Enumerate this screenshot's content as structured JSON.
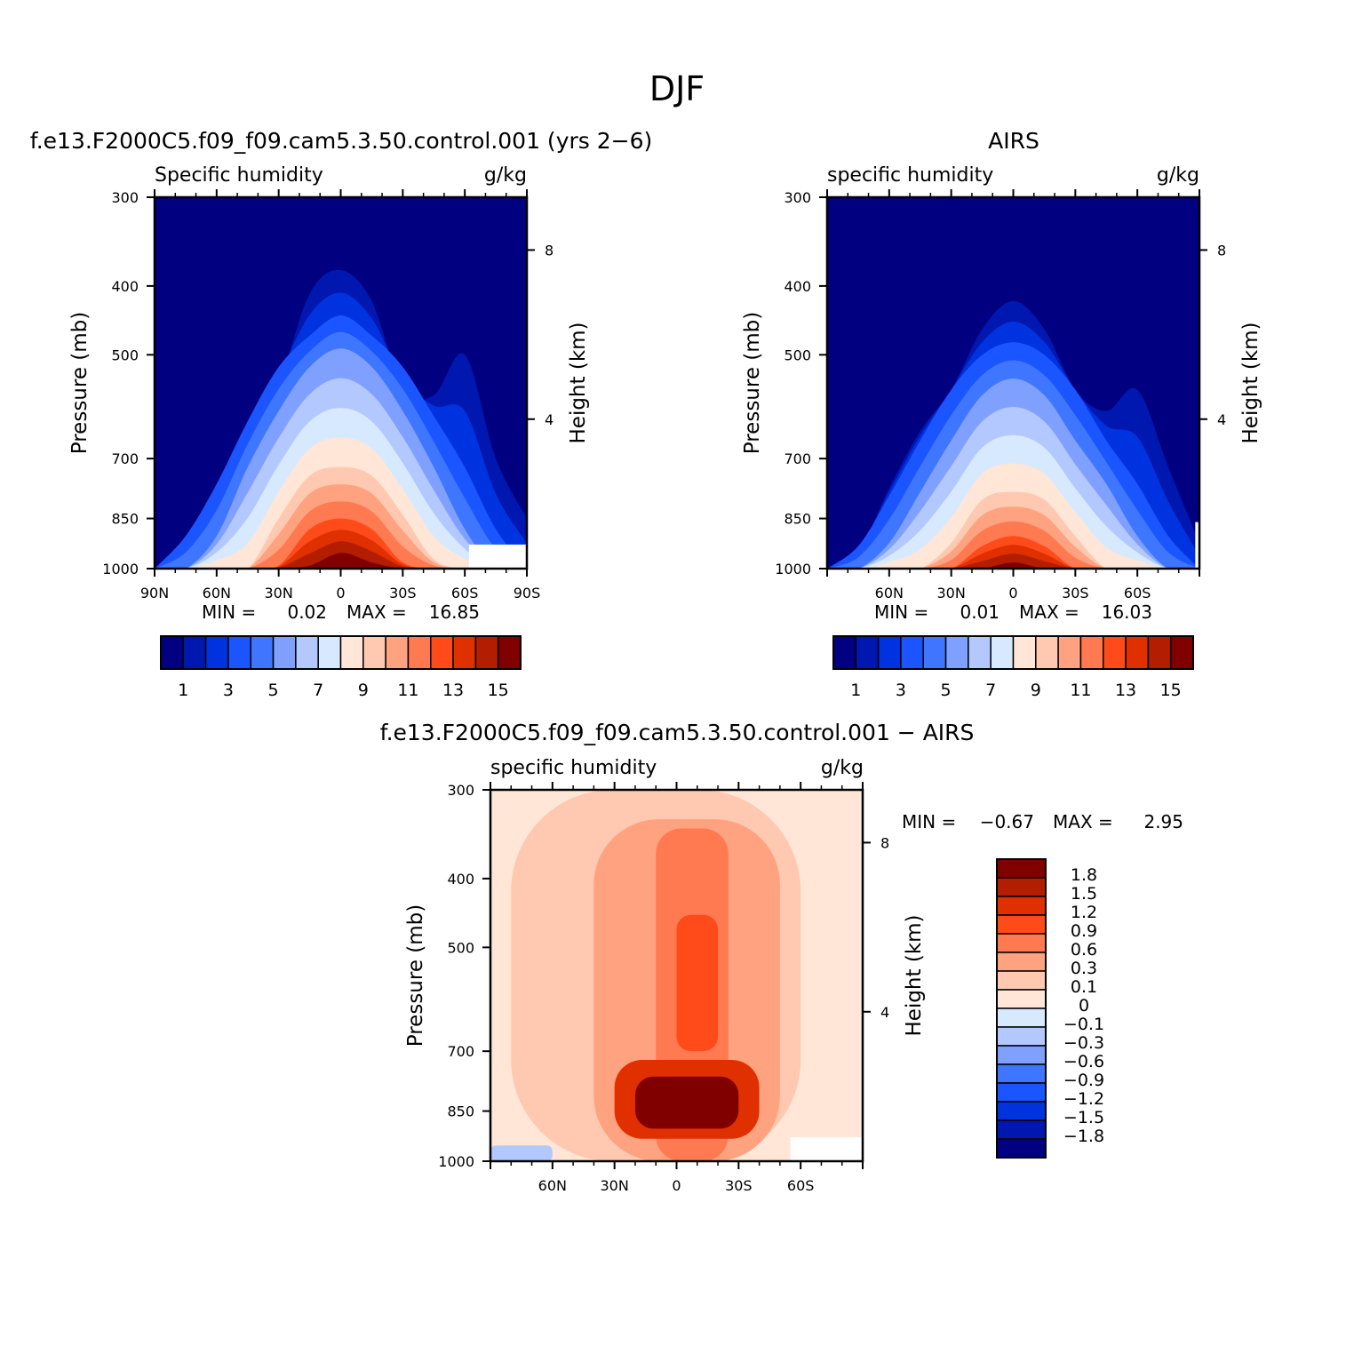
{
  "title": "DJF",
  "colors": {
    "absolute_scale": [
      "#000080",
      "#0017b0",
      "#0033e0",
      "#1a55ff",
      "#3f76ff",
      "#7fa0ff",
      "#b3c8ff",
      "#d7e9ff",
      "#ffe6d6",
      "#ffc8b0",
      "#ffa27f",
      "#ff7a50",
      "#ff4a1a",
      "#e03000",
      "#b41e00",
      "#800000"
    ],
    "difference_scale": [
      "#000080",
      "#0017b0",
      "#0033e0",
      "#1a55ff",
      "#3f76ff",
      "#7fa0ff",
      "#b3c8ff",
      "#d7e9ff",
      "#ffe6d6",
      "#ffc8b0",
      "#ffa27f",
      "#ff7a50",
      "#ff4a1a",
      "#e03000",
      "#b41e00",
      "#800000"
    ]
  },
  "panels": {
    "model": {
      "heading": "f.e13.F2000C5.f09_f09.cam5.3.50.control.001 (yrs 2−6)",
      "left_string": "Specific humidity",
      "right_string": "g/kg",
      "ylabel": "Pressure (mb)",
      "right_axis_label": "Height (km)",
      "y_ticks": [
        "300",
        "400",
        "500",
        "700",
        "850",
        "1000"
      ],
      "height_ticks": [
        "8",
        "4"
      ],
      "x_ticks": [
        "90N",
        "60N",
        "30N",
        "0",
        "30S",
        "60S",
        "90S"
      ],
      "min_label": "MIN =",
      "min_value": "0.02",
      "max_label": "MAX =",
      "max_value": "16.85",
      "colorbar_labels": [
        "1",
        "3",
        "5",
        "7",
        "9",
        "11",
        "13",
        "15"
      ]
    },
    "airs": {
      "heading": "AIRS",
      "left_string": "specific humidity",
      "right_string": "g/kg",
      "ylabel": "Pressure (mb)",
      "right_axis_label": "Height (km)",
      "y_ticks": [
        "300",
        "400",
        "500",
        "700",
        "850",
        "1000"
      ],
      "height_ticks": [
        "8",
        "4"
      ],
      "x_ticks": [
        "60N",
        "30N",
        "0",
        "30S",
        "60S"
      ],
      "min_label": "MIN =",
      "min_value": "0.01",
      "max_label": "MAX =",
      "max_value": "16.03",
      "colorbar_labels": [
        "1",
        "3",
        "5",
        "7",
        "9",
        "11",
        "13",
        "15"
      ]
    },
    "diff": {
      "heading": "f.e13.F2000C5.f09_f09.cam5.3.50.control.001 − AIRS",
      "left_string": "specific humidity",
      "right_string": "g/kg",
      "ylabel": "Pressure (mb)",
      "right_axis_label": "Height (km)",
      "y_ticks": [
        "300",
        "400",
        "500",
        "700",
        "850",
        "1000"
      ],
      "height_ticks": [
        "8",
        "4"
      ],
      "x_ticks": [
        "60N",
        "30N",
        "0",
        "30S",
        "60S"
      ],
      "min_label": "MIN =",
      "min_value": "−0.67",
      "max_label": "MAX =",
      "max_value": "2.95",
      "colorbar_labels": [
        "1.8",
        "1.5",
        "1.2",
        "0.9",
        "0.6",
        "0.3",
        "0.1",
        "0",
        "−0.1",
        "−0.3",
        "−0.6",
        "−0.9",
        "−1.2",
        "−1.5",
        "−1.8"
      ]
    }
  },
  "chart_data": [
    {
      "type": "heatmap",
      "title": "f.e13.F2000C5.f09_f09.cam5.3.50.control.001 (yrs 2−6)",
      "variable": "Specific humidity",
      "units": "g/kg",
      "x": [
        "90N",
        "60N",
        "30N",
        "0",
        "30S",
        "60S",
        "90S"
      ],
      "xlim": [
        90,
        -90
      ],
      "y": [
        300,
        400,
        500,
        700,
        850,
        1000
      ],
      "ylim": [
        1000,
        300
      ],
      "ylabel": "Pressure (mb)",
      "y2label": "Height (km)",
      "levels": [
        1,
        2,
        3,
        4,
        5,
        6,
        7,
        8,
        9,
        10,
        11,
        12,
        13,
        14,
        15
      ],
      "min": 0.02,
      "max": 16.85,
      "contour_tops_hPa": {
        "latitudes": [
          -90,
          -75,
          -60,
          -45,
          -30,
          -15,
          0,
          15,
          30,
          45,
          60,
          75,
          90
        ],
        "level_1": [
          850,
          700,
          500,
          570,
          560,
          420,
          380,
          410,
          550,
          650,
          760,
          950,
          1000
        ],
        "level_3": [
          1000,
          880,
          720,
          610,
          520,
          470,
          440,
          470,
          520,
          620,
          760,
          900,
          1000
        ],
        "level_5": [
          1000,
          1000,
          880,
          720,
          600,
          520,
          490,
          520,
          600,
          720,
          900,
          1000,
          1000
        ],
        "level_9": [
          1000,
          1000,
          1000,
          970,
          840,
          740,
          720,
          740,
          850,
          1000,
          1000,
          1000,
          1000
        ],
        "level_13": [
          1000,
          1000,
          1000,
          1000,
          980,
          880,
          850,
          880,
          990,
          1000,
          1000,
          1000,
          1000
        ],
        "level_15": [
          1000,
          1000,
          1000,
          1000,
          1000,
          980,
          950,
          990,
          1000,
          1000,
          1000,
          1000,
          1000
        ]
      }
    },
    {
      "type": "heatmap",
      "title": "AIRS",
      "variable": "specific humidity",
      "units": "g/kg",
      "x": [
        "60N",
        "30N",
        "0",
        "30S",
        "60S"
      ],
      "xlim": [
        90,
        -90
      ],
      "y": [
        300,
        400,
        500,
        700,
        850,
        1000
      ],
      "ylim": [
        1000,
        300
      ],
      "ylabel": "Pressure (mb)",
      "y2label": "Height (km)",
      "levels": [
        1,
        2,
        3,
        4,
        5,
        6,
        7,
        8,
        9,
        10,
        11,
        12,
        13,
        14,
        15
      ],
      "min": 0.01,
      "max": 16.03,
      "contour_tops_hPa": {
        "latitudes": [
          -90,
          -75,
          -60,
          -45,
          -30,
          -15,
          0,
          15,
          30,
          45,
          60,
          75,
          90
        ],
        "level_1": [
          920,
          720,
          560,
          600,
          560,
          460,
          420,
          460,
          560,
          640,
          770,
          950,
          1000
        ],
        "level_3": [
          1000,
          900,
          760,
          660,
          560,
          500,
          480,
          500,
          560,
          660,
          790,
          930,
          1000
        ],
        "level_5": [
          1000,
          1000,
          900,
          760,
          660,
          570,
          540,
          570,
          660,
          780,
          920,
          1000,
          1000
        ],
        "level_9": [
          1000,
          1000,
          1000,
          1000,
          900,
          800,
          780,
          800,
          920,
          1000,
          1000,
          1000,
          1000
        ],
        "level_13": [
          1000,
          1000,
          1000,
          1000,
          1000,
          930,
          900,
          930,
          1000,
          1000,
          1000,
          1000,
          1000
        ],
        "level_15": [
          1000,
          1000,
          1000,
          1000,
          1000,
          1000,
          980,
          1000,
          1000,
          1000,
          1000,
          1000,
          1000
        ]
      }
    },
    {
      "type": "heatmap",
      "title": "f.e13.F2000C5.f09_f09.cam5.3.50.control.001 − AIRS",
      "variable": "specific humidity",
      "units": "g/kg",
      "x": [
        "60N",
        "30N",
        "0",
        "30S",
        "60S"
      ],
      "xlim": [
        90,
        -90
      ],
      "y": [
        300,
        400,
        500,
        700,
        850,
        1000
      ],
      "ylim": [
        1000,
        300
      ],
      "ylabel": "Pressure (mb)",
      "y2label": "Height (km)",
      "levels": [
        -1.8,
        -1.5,
        -1.2,
        -0.9,
        -0.6,
        -0.3,
        -0.1,
        0,
        0.1,
        0.3,
        0.6,
        0.9,
        1.2,
        1.5,
        1.8
      ],
      "min": -0.67,
      "max": 2.95,
      "background_level": 0,
      "regions": [
        {
          "level": 0.1,
          "lat": [
            80,
            -60
          ],
          "p": [
            300,
            1000
          ]
        },
        {
          "level": 0.3,
          "lat": [
            40,
            -50
          ],
          "p": [
            330,
            1000
          ]
        },
        {
          "level": 0.6,
          "lat": [
            10,
            -25
          ],
          "p": [
            340,
            1000
          ]
        },
        {
          "level": 0.9,
          "lat": [
            0,
            -20
          ],
          "p": [
            450,
            700
          ]
        },
        {
          "level": 1.2,
          "lat": [
            30,
            -40
          ],
          "p": [
            720,
            930
          ]
        },
        {
          "level": 1.8,
          "lat": [
            20,
            -30
          ],
          "p": [
            760,
            900
          ]
        },
        {
          "level": -0.3,
          "lat": [
            90,
            60
          ],
          "p": [
            950,
            1000
          ]
        }
      ]
    }
  ]
}
